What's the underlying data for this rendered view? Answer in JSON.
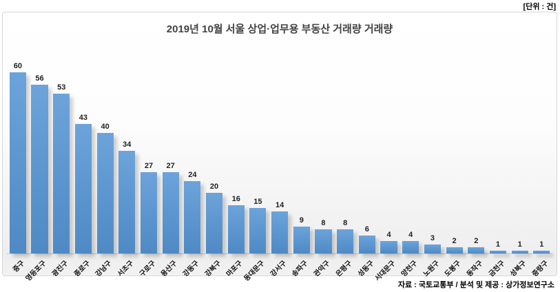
{
  "unit_label": "[단위 : 건]",
  "source_label": "자료 : 국토교통부 / 분석 및 제공 : 상가정보연구소",
  "chart_data": {
    "type": "bar",
    "title": "2019년 10월 서울 상업·업무용 부동산 거래량 거래량",
    "xlabel": "",
    "ylabel": "",
    "unit": "건",
    "ylim": [
      0,
      63
    ],
    "grid": false,
    "legend": "none",
    "value_labels": true,
    "bar_color": "#5494d4",
    "categories": [
      "중구",
      "영등포구",
      "광진구",
      "종로구",
      "강남구",
      "서초구",
      "구로구",
      "용산구",
      "강동구",
      "강북구",
      "마포구",
      "동대문구",
      "강서구",
      "송파구",
      "관악구",
      "은평구",
      "성동구",
      "서대문구",
      "양천구",
      "노원구",
      "도봉구",
      "동작구",
      "금천구",
      "성북구",
      "중랑구"
    ],
    "values": [
      60,
      56,
      53,
      43,
      40,
      34,
      27,
      27,
      24,
      20,
      16,
      15,
      14,
      9,
      8,
      8,
      6,
      4,
      4,
      3,
      2,
      2,
      1,
      1,
      1
    ]
  }
}
